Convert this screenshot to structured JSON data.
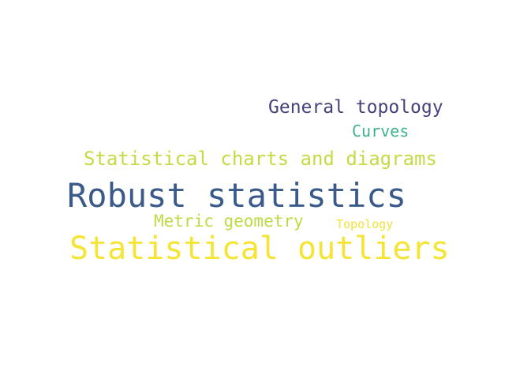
{
  "words": [
    {
      "text": "General topology",
      "color": "#46427b"
    },
    {
      "text": "Curves",
      "color": "#3fb389"
    },
    {
      "text": "Statistical charts and diagrams",
      "color": "#c2dc44"
    },
    {
      "text": "Robust statistics",
      "color": "#3a5a8a"
    },
    {
      "text": "Metric geometry",
      "color": "#bcdc46"
    },
    {
      "text": "Topology",
      "color": "#f1e23c"
    },
    {
      "text": "Statistical outliers",
      "color": "#f6e434"
    }
  ]
}
